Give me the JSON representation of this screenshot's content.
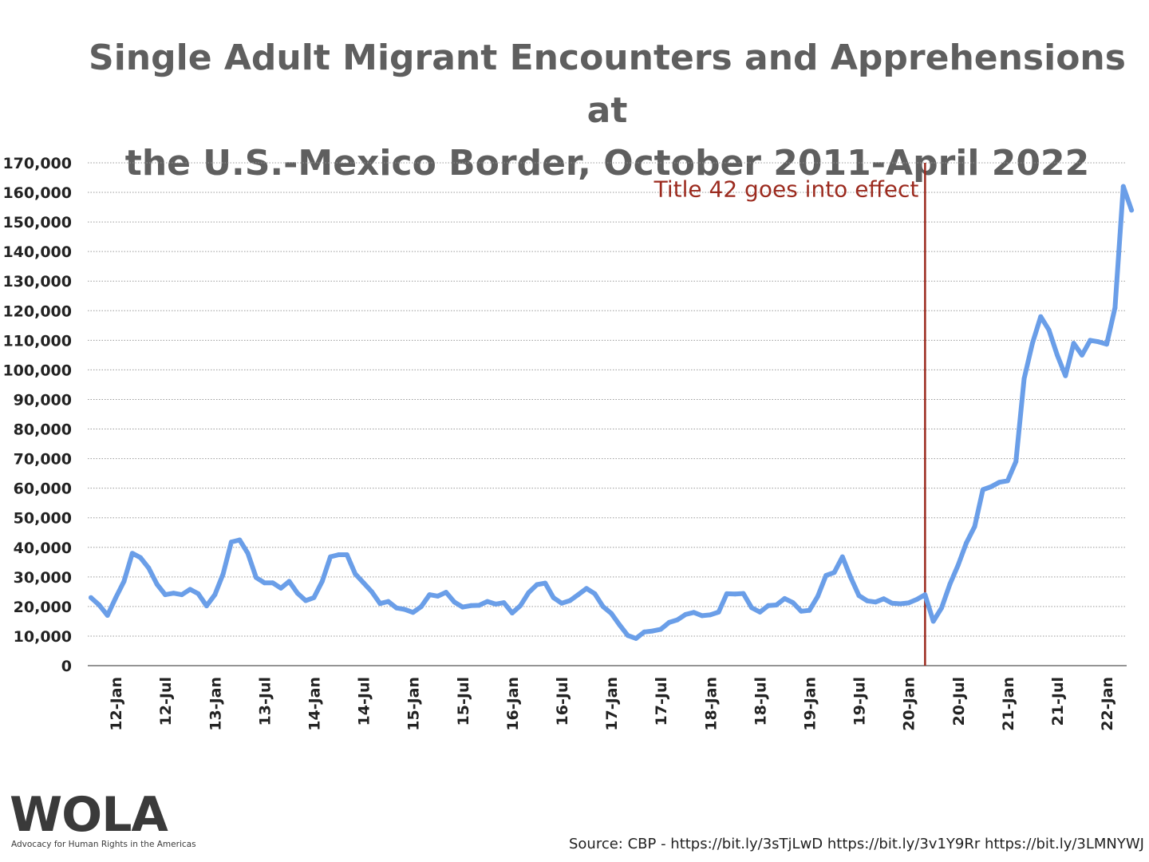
{
  "title_lines": [
    "Single Adult Migrant Encounters and Apprehensions at",
    "the U.S.-Mexico Border, October 2011-April 2022"
  ],
  "annotation": {
    "text": "Title 42 goes into effect",
    "color": "#9b2a1e"
  },
  "logo": {
    "text": "WOLA",
    "tagline": "Advocacy for Human Rights in the Americas"
  },
  "source": "Source: CBP - https://bit.ly/3sTjLwD https://bit.ly/3v1Y9Rr https://bit.ly/3LMNYWJ",
  "colors": {
    "line": "#6a9ee8",
    "title": "#5f5f5f",
    "annotation_line": "#9b2a1e"
  },
  "chart_data": {
    "type": "line",
    "title": "Single Adult Migrant Encounters and Apprehensions at the U.S.-Mexico Border, October 2011-April 2022",
    "x_start": "2011-10",
    "x_end": "2022-04",
    "x_ticks": [
      "12-Jan",
      "12-Jul",
      "13-Jan",
      "13-Jul",
      "14-Jan",
      "14-Jul",
      "15-Jan",
      "15-Jul",
      "16-Jan",
      "16-Jul",
      "17-Jan",
      "17-Jul",
      "18-Jan",
      "18-Jul",
      "19-Jan",
      "19-Jul",
      "20-Jan",
      "20-Jul",
      "21-Jan",
      "21-Jul",
      "22-Jan"
    ],
    "ylim": [
      0,
      170000
    ],
    "y_ticks": [
      "0",
      "10,000",
      "20,000",
      "30,000",
      "40,000",
      "50,000",
      "60,000",
      "70,000",
      "80,000",
      "90,000",
      "100,000",
      "110,000",
      "120,000",
      "130,000",
      "140,000",
      "150,000",
      "160,000",
      "170,000"
    ],
    "grid": true,
    "legend": "none",
    "annotation": {
      "x": "2020-03",
      "label": "Title 42 goes into effect"
    },
    "series": [
      {
        "x": [
          "2011-10",
          "2011-11",
          "2011-12",
          "2012-01",
          "2012-02",
          "2012-03",
          "2012-04",
          "2012-05",
          "2012-06",
          "2012-07",
          "2012-08",
          "2012-09",
          "2012-10",
          "2012-11",
          "2012-12",
          "2013-01",
          "2013-02",
          "2013-03",
          "2013-04",
          "2013-05",
          "2013-06",
          "2013-07",
          "2013-08",
          "2013-09",
          "2013-10",
          "2013-11",
          "2013-12",
          "2014-01",
          "2014-02",
          "2014-03",
          "2014-04",
          "2014-05",
          "2014-06",
          "2014-07",
          "2014-08",
          "2014-09",
          "2014-10",
          "2014-11",
          "2014-12",
          "2015-01",
          "2015-02",
          "2015-03",
          "2015-04",
          "2015-05",
          "2015-06",
          "2015-07",
          "2015-08",
          "2015-09",
          "2015-10",
          "2015-11",
          "2015-12",
          "2016-01",
          "2016-02",
          "2016-03",
          "2016-04",
          "2016-05",
          "2016-06",
          "2016-07",
          "2016-08",
          "2016-09",
          "2016-10",
          "2016-11",
          "2016-12",
          "2017-01",
          "2017-02",
          "2017-03",
          "2017-04",
          "2017-05",
          "2017-06",
          "2017-07",
          "2017-08",
          "2017-09",
          "2017-10",
          "2017-11",
          "2017-12",
          "2018-01",
          "2018-02",
          "2018-03",
          "2018-04",
          "2018-05",
          "2018-06",
          "2018-07",
          "2018-08",
          "2018-09",
          "2018-10",
          "2018-11",
          "2018-12",
          "2019-01",
          "2019-02",
          "2019-03",
          "2019-04",
          "2019-05",
          "2019-06",
          "2019-07",
          "2019-08",
          "2019-09",
          "2019-10",
          "2019-11",
          "2019-12",
          "2020-01",
          "2020-02",
          "2020-03",
          "2020-04",
          "2020-05",
          "2020-06",
          "2020-07",
          "2020-08",
          "2020-09",
          "2020-10",
          "2020-11",
          "2020-12",
          "2021-01",
          "2021-02",
          "2021-03",
          "2021-04",
          "2021-05",
          "2021-06",
          "2021-07",
          "2021-08",
          "2021-09",
          "2021-10",
          "2021-11",
          "2021-12",
          "2022-01",
          "2022-02",
          "2022-03",
          "2022-04"
        ],
        "values": [
          23000,
          20500,
          17000,
          23000,
          28500,
          38000,
          36500,
          33000,
          27500,
          24000,
          24500,
          24000,
          25800,
          24300,
          20200,
          24000,
          31000,
          41800,
          42500,
          38000,
          29800,
          28000,
          28000,
          26200,
          28500,
          24500,
          22000,
          23000,
          28500,
          36800,
          37500,
          37500,
          31000,
          28000,
          25000,
          21000,
          21700,
          19500,
          19000,
          18000,
          20000,
          24000,
          23500,
          24800,
          21500,
          19800,
          20300,
          20400,
          21700,
          20800,
          21300,
          17800,
          20300,
          24700,
          27400,
          27900,
          23000,
          21100,
          22000,
          24000,
          26100,
          24300,
          20000,
          17700,
          13800,
          10200,
          9200,
          11400,
          11700,
          12300,
          14600,
          15500,
          17300,
          18000,
          16900,
          17200,
          18100,
          24300,
          24200,
          24400,
          19600,
          18100,
          20300,
          20500,
          22700,
          21300,
          18400,
          18700,
          23400,
          30500,
          31500,
          36800,
          29800,
          23700,
          21900,
          21500,
          22600,
          21100,
          20900,
          21200,
          22400,
          24000,
          15000,
          19500,
          27500,
          34000,
          41500,
          47000,
          59500,
          60500,
          62000,
          62500,
          69000,
          97000,
          109000,
          118000,
          113500,
          105000,
          98000,
          109000,
          105000,
          110000,
          109500,
          108700,
          121000,
          162000,
          154000
        ]
      }
    ]
  }
}
